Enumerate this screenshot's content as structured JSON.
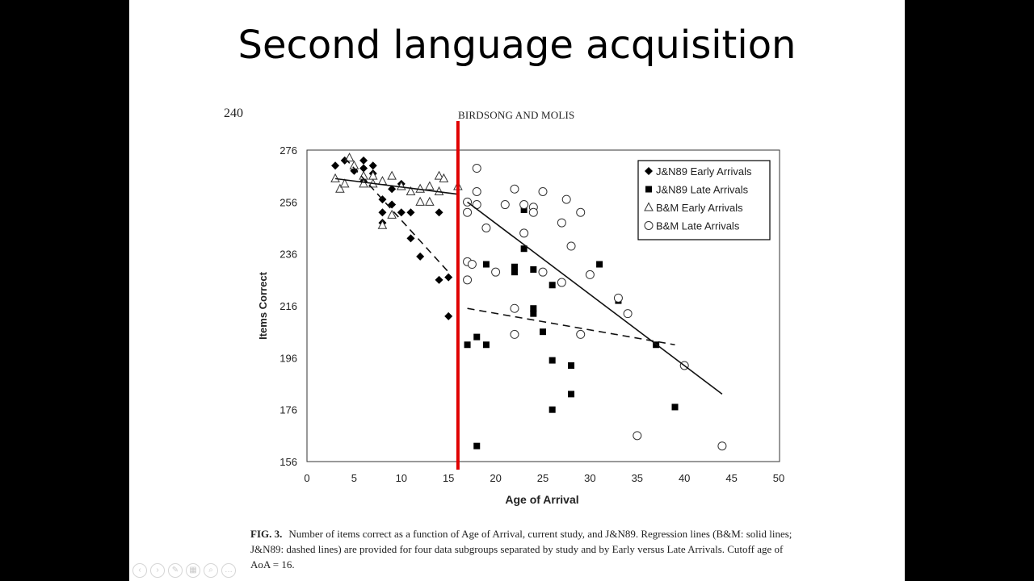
{
  "slide": {
    "title": "Second language acquisition",
    "page_number": "240",
    "running_head": "BIRDSONG AND MOLIS",
    "caption_label": "FIG. 3.",
    "caption_text": "Number of items correct as a function of Age of Arrival, current study, and J&N89. Regression lines (B&M: solid lines; J&N89: dashed lines) are provided for four data subgroups separated by study and by Early versus Late Arrivals. Cutoff age of AoA = 16.",
    "controls": [
      "prev-icon",
      "next-icon",
      "pen-icon",
      "slides-icon",
      "zoom-icon",
      "more-icon"
    ]
  },
  "chart_data": {
    "type": "scatter",
    "xlabel": "Age of Arrival",
    "ylabel": "Items Correct",
    "xlim": [
      0,
      50
    ],
    "ylim": [
      156,
      276
    ],
    "xticks": [
      "0",
      "5",
      "10",
      "15",
      "20",
      "25",
      "30",
      "35",
      "40",
      "45",
      "50"
    ],
    "yticks": [
      "156",
      "176",
      "196",
      "216",
      "236",
      "256",
      "276"
    ],
    "legend_position": "top-right",
    "cutoff_line": {
      "x": 16,
      "color": "#e00000"
    },
    "series": [
      {
        "name": "J&N89 Early Arrivals",
        "marker": "diamond",
        "points": [
          [
            3,
            270
          ],
          [
            4,
            272
          ],
          [
            5,
            268
          ],
          [
            5,
            269
          ],
          [
            6,
            272
          ],
          [
            6,
            269
          ],
          [
            6,
            264
          ],
          [
            7,
            270
          ],
          [
            7,
            267
          ],
          [
            8,
            257
          ],
          [
            8,
            252
          ],
          [
            8,
            248
          ],
          [
            9,
            261
          ],
          [
            9,
            255
          ],
          [
            10,
            263
          ],
          [
            10,
            252
          ],
          [
            11,
            252
          ],
          [
            11,
            242
          ],
          [
            12,
            235
          ],
          [
            14,
            252
          ],
          [
            14,
            226
          ],
          [
            15,
            227
          ],
          [
            15,
            212
          ]
        ]
      },
      {
        "name": "J&N89 Late Arrivals",
        "marker": "square",
        "points": [
          [
            17,
            201
          ],
          [
            18,
            204
          ],
          [
            18,
            162
          ],
          [
            19,
            201
          ],
          [
            19,
            232
          ],
          [
            22,
            229
          ],
          [
            22,
            231
          ],
          [
            23,
            253
          ],
          [
            23,
            238
          ],
          [
            24,
            215
          ],
          [
            24,
            213
          ],
          [
            24,
            230
          ],
          [
            25,
            206
          ],
          [
            26,
            224
          ],
          [
            26,
            195
          ],
          [
            26,
            176
          ],
          [
            28,
            193
          ],
          [
            28,
            182
          ],
          [
            31,
            232
          ],
          [
            33,
            218
          ],
          [
            37,
            201
          ],
          [
            39,
            177
          ]
        ]
      },
      {
        "name": "B&M Early Arrivals",
        "marker": "triangle",
        "points": [
          [
            3,
            265
          ],
          [
            3.5,
            261
          ],
          [
            4,
            263
          ],
          [
            4.5,
            273
          ],
          [
            5,
            270
          ],
          [
            6,
            266
          ],
          [
            6,
            263
          ],
          [
            7,
            266
          ],
          [
            7,
            263
          ],
          [
            8,
            264
          ],
          [
            8,
            247
          ],
          [
            9,
            266
          ],
          [
            9,
            251
          ],
          [
            10,
            262
          ],
          [
            11,
            260
          ],
          [
            12,
            261
          ],
          [
            12,
            256
          ],
          [
            13,
            256
          ],
          [
            13,
            262
          ],
          [
            14,
            260
          ],
          [
            14,
            266
          ],
          [
            14.5,
            265
          ],
          [
            16,
            262
          ]
        ]
      },
      {
        "name": "B&M Late Arrivals",
        "marker": "circle",
        "points": [
          [
            17,
            256
          ],
          [
            17,
            252
          ],
          [
            17,
            233
          ],
          [
            17.5,
            232
          ],
          [
            17,
            226
          ],
          [
            18,
            269
          ],
          [
            18,
            260
          ],
          [
            18,
            255
          ],
          [
            19,
            246
          ],
          [
            20,
            229
          ],
          [
            21,
            255
          ],
          [
            22,
            261
          ],
          [
            22,
            215
          ],
          [
            22,
            205
          ],
          [
            23,
            255
          ],
          [
            23,
            244
          ],
          [
            24,
            254
          ],
          [
            24,
            252
          ],
          [
            25,
            260
          ],
          [
            25,
            229
          ],
          [
            27,
            248
          ],
          [
            27,
            225
          ],
          [
            27.5,
            257
          ],
          [
            28,
            239
          ],
          [
            29,
            252
          ],
          [
            29,
            205
          ],
          [
            30,
            228
          ],
          [
            33,
            219
          ],
          [
            34,
            213
          ],
          [
            35,
            166
          ],
          [
            40,
            193
          ],
          [
            44,
            162
          ]
        ]
      }
    ],
    "regression_lines": [
      {
        "series": "B&M Early Arrivals",
        "style": "solid",
        "from": [
          3,
          265
        ],
        "to": [
          16,
          259
        ]
      },
      {
        "series": "J&N89 Early Arrivals",
        "style": "dashed",
        "from": [
          4,
          273
        ],
        "to": [
          15,
          229
        ]
      },
      {
        "series": "B&M Late Arrivals",
        "style": "solid",
        "from": [
          17,
          256
        ],
        "to": [
          44,
          182
        ]
      },
      {
        "series": "J&N89 Late Arrivals",
        "style": "dashed",
        "from": [
          17,
          215
        ],
        "to": [
          39,
          201
        ]
      }
    ]
  }
}
